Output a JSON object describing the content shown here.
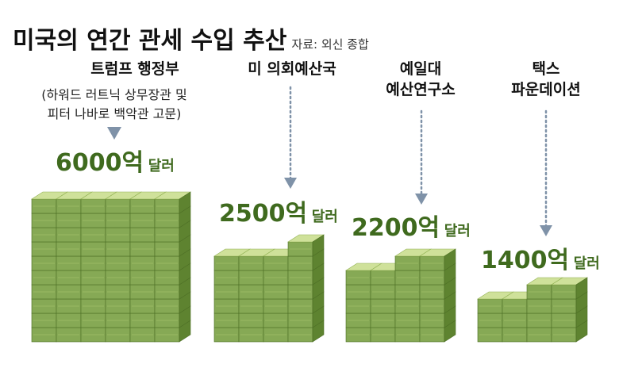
{
  "title": "미국의 연간 관세 수입 추산",
  "source": "자료: 외신 종합",
  "colors": {
    "block_front": "#86a955",
    "block_top": "#cfe19a",
    "block_side": "#5e8330",
    "label_green": "#3f6a1e",
    "arrow": "#7f92a8"
  },
  "chart_data": {
    "type": "bar",
    "title": "미국의 연간 관세 수입 추산",
    "unit": "억 달러",
    "categories": [
      "트럼프 행정부",
      "미 의회예산국",
      "예일대 예산연구소",
      "택스 파운데이션"
    ],
    "values": [
      6000,
      2500,
      2200,
      1400
    ],
    "series": [
      {
        "values": [
          6000,
          2500,
          2200,
          1400
        ]
      }
    ]
  },
  "labels": [
    {
      "source_lines": [
        "트럼프 행정부"
      ],
      "note_lines": [
        "(하워드 러트닉 상무장관 및",
        "피터 나바로 백악관 고문)"
      ],
      "value": "6000억",
      "unit": "달러"
    },
    {
      "source_lines": [
        "미 의회예산국"
      ],
      "note_lines": [],
      "value": "2500억",
      "unit": "달러"
    },
    {
      "source_lines": [
        "예일대",
        "예산연구소"
      ],
      "note_lines": [],
      "value": "2200억",
      "unit": "달러"
    },
    {
      "source_lines": [
        "택스",
        "파운데이션"
      ],
      "note_lines": [],
      "value": "1400억",
      "unit": "달러"
    }
  ]
}
